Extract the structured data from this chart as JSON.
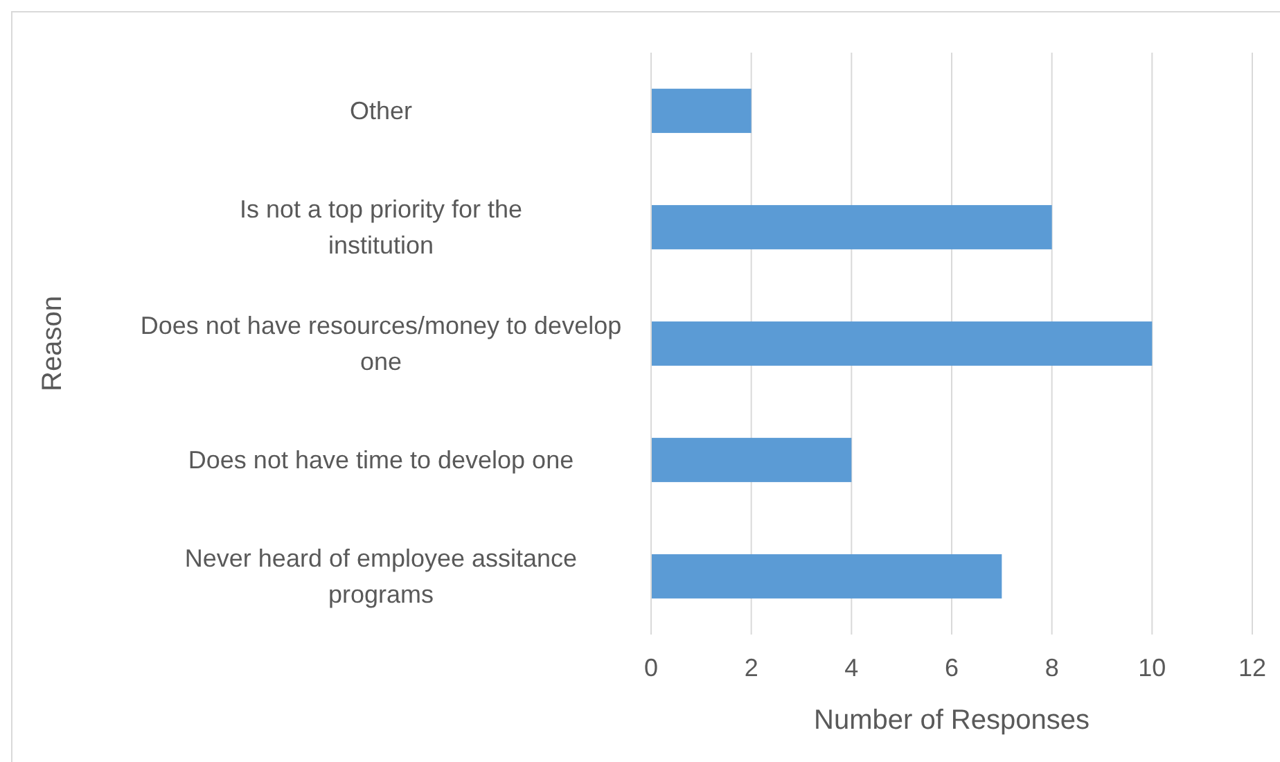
{
  "chart_data": {
    "type": "bar",
    "orientation": "horizontal",
    "xlabel": "Number of Responses",
    "ylabel": "Reason",
    "categories": [
      "Other",
      "Is not a top priority for the institution",
      "Does not have resources/money to develop one",
      "Does not have time to develop one",
      "Never heard of employee assitance programs"
    ],
    "values": [
      2,
      8,
      10,
      4,
      7
    ],
    "color": "#5b9bd5",
    "xlim": [
      0,
      12
    ],
    "xticks": [
      0,
      2,
      4,
      6,
      8,
      10,
      12
    ],
    "grid": "x"
  }
}
